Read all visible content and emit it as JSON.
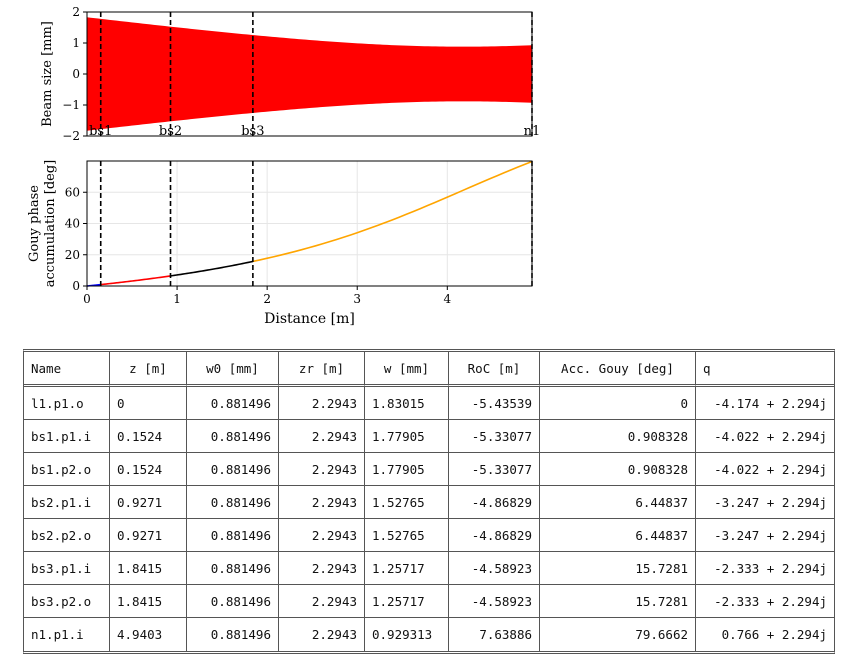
{
  "chart_data": [
    {
      "type": "area",
      "ylabel": "Beam size [mm]",
      "ylim": [
        -2,
        2
      ],
      "xlim": [
        0,
        4.9403
      ],
      "yticks": [
        "2",
        "1",
        "0",
        "−1",
        "−2"
      ],
      "fill_color": "#ff0000",
      "x": [
        0,
        0.1524,
        0.9271,
        1.8415,
        4.9403
      ],
      "series": [
        {
          "values": [
            1.83015,
            1.77905,
            1.52765,
            1.25717,
            0.929313
          ]
        }
      ],
      "markers": [
        {
          "x": 0.1524,
          "label": "bs1"
        },
        {
          "x": 0.9271,
          "label": "bs2"
        },
        {
          "x": 1.8415,
          "label": "bs3"
        },
        {
          "x": 4.9403,
          "label": "n1"
        }
      ]
    },
    {
      "type": "line",
      "ylabel": "Gouy phase accumulation [deg]",
      "ylabel_lines": [
        "Gouy phase",
        "accumulation [deg]"
      ],
      "xlabel": "Distance [m]",
      "xlim": [
        0,
        4.9403
      ],
      "ylim": [
        0,
        80
      ],
      "xticks": [
        "0",
        "1",
        "2",
        "3",
        "4"
      ],
      "yticks": [
        "0",
        "20",
        "40",
        "60"
      ],
      "grid": true,
      "segments": [
        {
          "color": "#0000ff",
          "x": [
            0,
            0.1524
          ],
          "y": [
            0,
            0.908328
          ]
        },
        {
          "color": "#ff0000",
          "x": [
            0.1524,
            0.9271
          ],
          "y": [
            0.908328,
            6.44837
          ]
        },
        {
          "color": "#000000",
          "x": [
            0.9271,
            1.8415
          ],
          "y": [
            6.44837,
            15.7281
          ]
        },
        {
          "color": "#ffa500",
          "x": [
            1.8415,
            4.9403
          ],
          "y": [
            15.7281,
            79.6662
          ]
        }
      ],
      "markers_x": [
        0.1524,
        0.9271,
        1.8415,
        4.9403
      ]
    }
  ],
  "table": {
    "headers": [
      "Name",
      "z [m]",
      "w0 [mm]",
      "zr [m]",
      "w [mm]",
      "RoC [m]",
      "Acc. Gouy [deg]",
      "q"
    ],
    "rows": [
      [
        "l1.p1.o",
        "0",
        "0.881496",
        "2.2943",
        "1.83015",
        "-5.43539",
        "0",
        "-4.174 + 2.294j"
      ],
      [
        "bs1.p1.i",
        "0.1524",
        "0.881496",
        "2.2943",
        "1.77905",
        "-5.33077",
        "0.908328",
        "-4.022 + 2.294j"
      ],
      [
        "bs1.p2.o",
        "0.1524",
        "0.881496",
        "2.2943",
        "1.77905",
        "-5.33077",
        "0.908328",
        "-4.022 + 2.294j"
      ],
      [
        "bs2.p1.i",
        "0.9271",
        "0.881496",
        "2.2943",
        "1.52765",
        "-4.86829",
        "6.44837",
        "-3.247 + 2.294j"
      ],
      [
        "bs2.p2.o",
        "0.9271",
        "0.881496",
        "2.2943",
        "1.52765",
        "-4.86829",
        "6.44837",
        "-3.247 + 2.294j"
      ],
      [
        "bs3.p1.i",
        "1.8415",
        "0.881496",
        "2.2943",
        "1.25717",
        "-4.58923",
        "15.7281",
        "-2.333 + 2.294j"
      ],
      [
        "bs3.p2.o",
        "1.8415",
        "0.881496",
        "2.2943",
        "1.25717",
        "-4.58923",
        "15.7281",
        "-2.333 + 2.294j"
      ],
      [
        "n1.p1.i",
        "4.9403",
        "0.881496",
        "2.2943",
        "0.929313",
        "7.63886",
        "79.6662",
        "0.766 + 2.294j"
      ]
    ]
  }
}
